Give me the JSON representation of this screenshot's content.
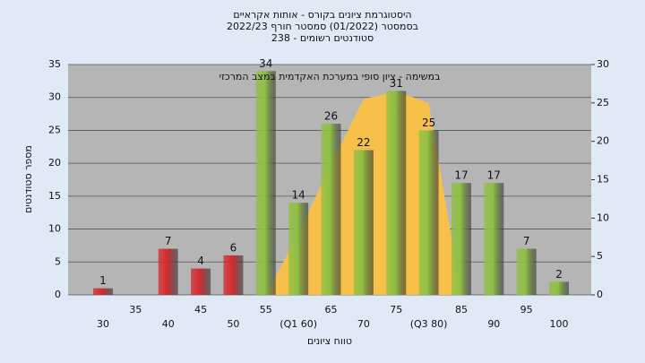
{
  "chart_data": {
    "type": "bar",
    "title": "היסטוגרמת ציונים בקורס - אותות אקראיים",
    "subtitle": "בסמסטר (01/2022) סמסטר חורף 2022/23",
    "subtitle2": "סטודנטים רשומים - 238",
    "annotation": "במשימה - ציון סופי במערכת האקדמית במצב המרכזי",
    "x_label": "טווח ציונים",
    "y_label": "מספר סטודנטים",
    "categories": [
      "30",
      "35",
      "40",
      "45",
      "50",
      "55",
      "(Q1 60)",
      "65",
      "70",
      "75",
      "(Q3 80)",
      "85",
      "90",
      "95",
      "100"
    ],
    "values": [
      1,
      0,
      7,
      4,
      6,
      34,
      14,
      26,
      22,
      31,
      25,
      17,
      17,
      7,
      2
    ],
    "colors": [
      "#d42a30",
      "#d42a30",
      "#d42a30",
      "#d42a30",
      "#d42a30",
      "#8fc043",
      "#8fc043",
      "#8fc043",
      "#8fc043",
      "#8fc043",
      "#8fc043",
      "#8fc043",
      "#8fc043",
      "#8fc043",
      "#8fc043"
    ],
    "area": {
      "axis": "y2",
      "color": "#f7c04a",
      "values": [
        null,
        null,
        null,
        null,
        null,
        0,
        8,
        17,
        25.5,
        26.5,
        25,
        0,
        null,
        null,
        null
      ]
    },
    "ylim": [
      0,
      35
    ],
    "yticks": [
      0,
      5,
      10,
      15,
      20,
      25,
      30,
      35
    ],
    "y2lim": [
      0,
      30
    ],
    "y2ticks": [
      0,
      5,
      10,
      15,
      20,
      25,
      30
    ],
    "grid": true
  }
}
